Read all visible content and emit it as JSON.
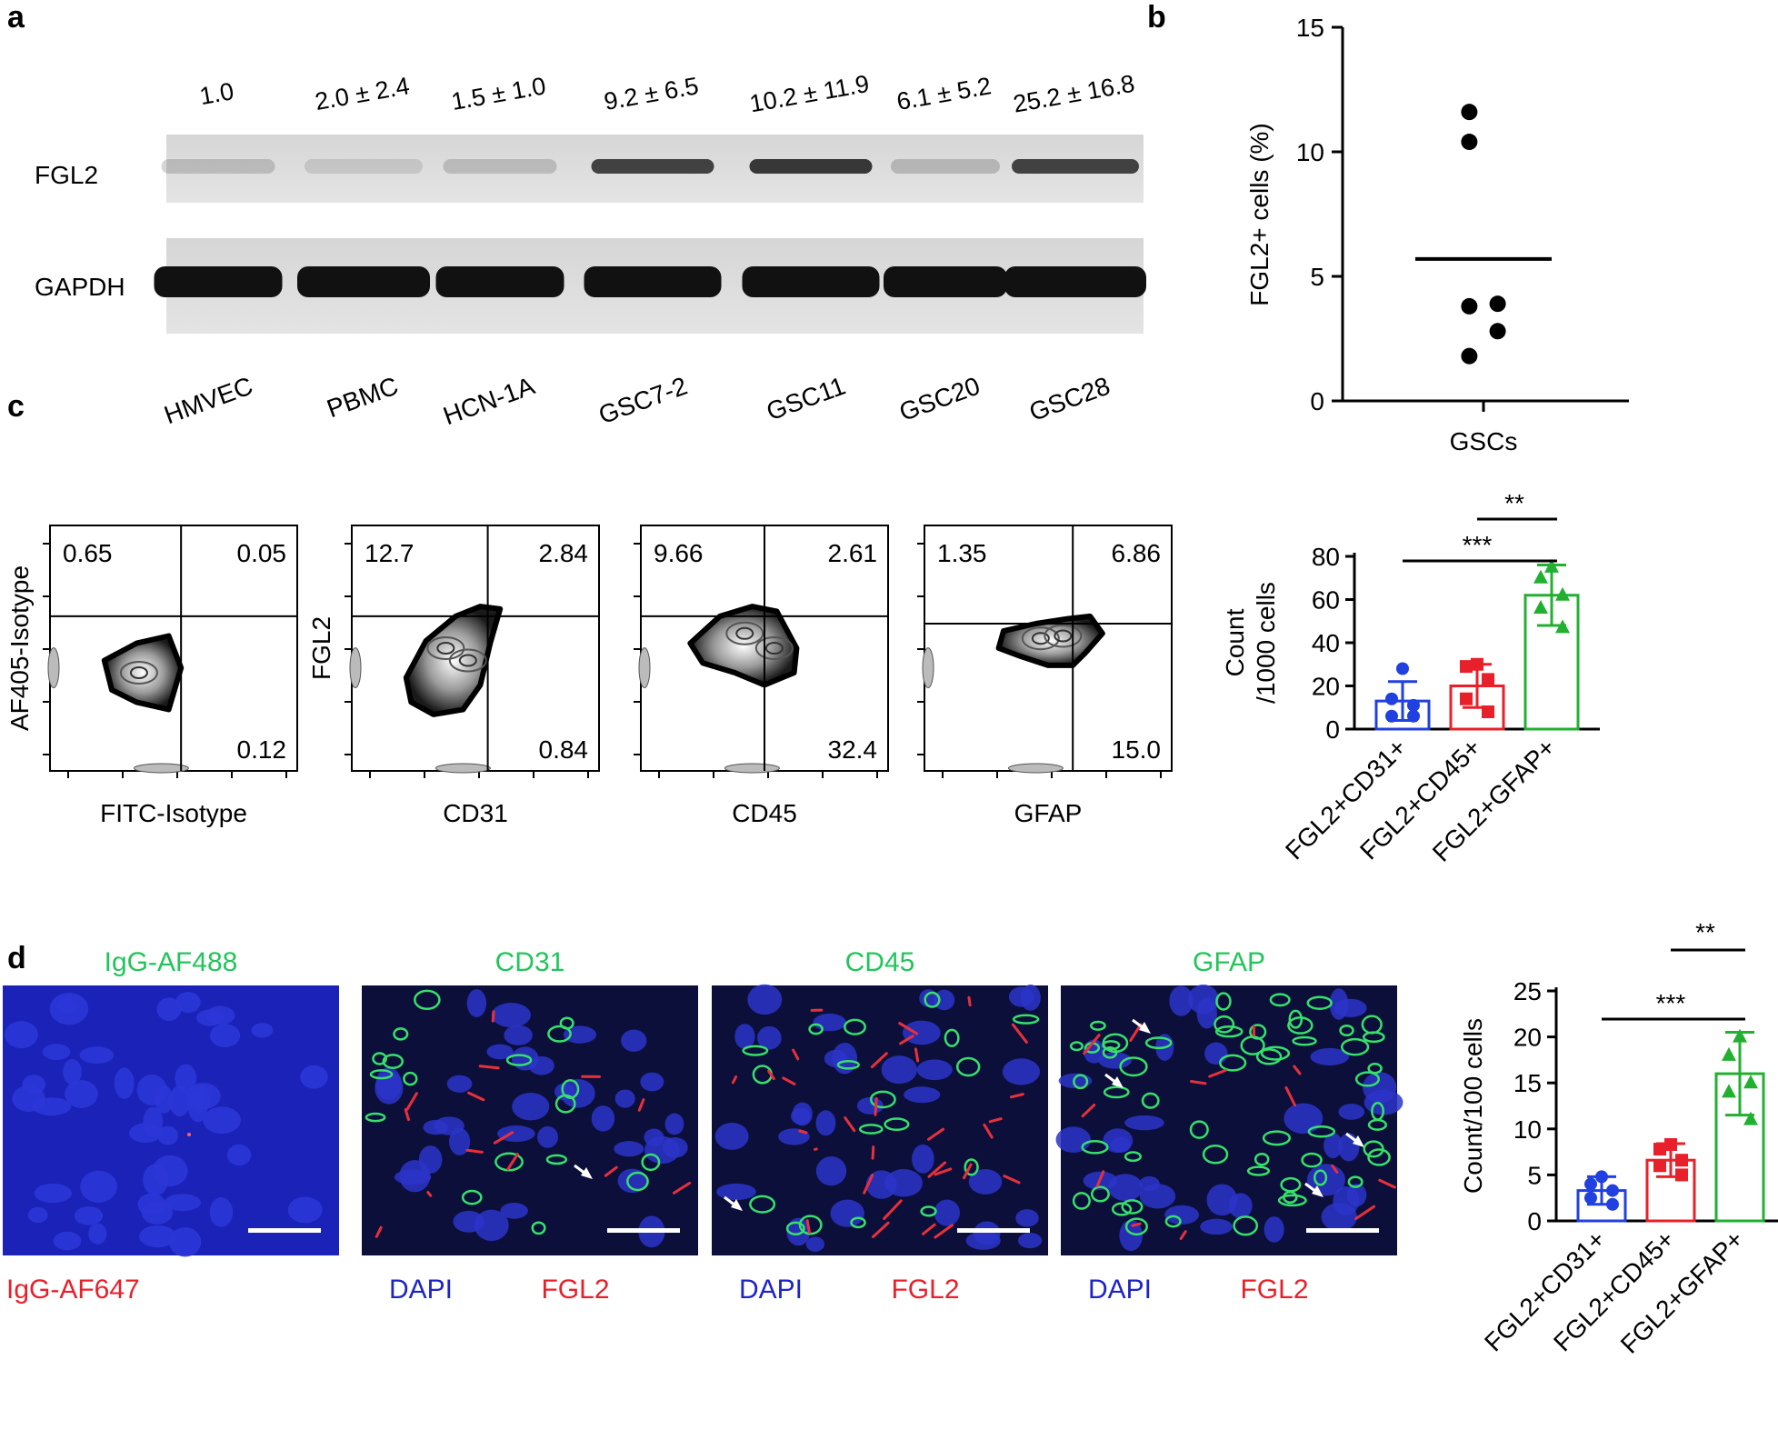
{
  "panel_labels": {
    "a": "a",
    "b": "b",
    "c": "c",
    "d": "d"
  },
  "panel_a": {
    "bands": [
      "FGL2",
      "GAPDH"
    ],
    "lanes": [
      {
        "name": "HMVEC",
        "quant": "1.0",
        "fgl2_intensity": 0.18
      },
      {
        "name": "PBMC",
        "quant": "2.0 ± 2.4",
        "fgl2_intensity": 0.12
      },
      {
        "name": "HCN-1A",
        "quant": "1.5 ± 1.0",
        "fgl2_intensity": 0.18
      },
      {
        "name": "GSC7-2",
        "quant": "9.2 ± 6.5",
        "fgl2_intensity": 0.8
      },
      {
        "name": "GSC11",
        "quant": "10.2 ± 11.9",
        "fgl2_intensity": 0.85
      },
      {
        "name": "GSC20",
        "quant": "6.1 ± 5.2",
        "fgl2_intensity": 0.2
      },
      {
        "name": "GSC28",
        "quant": "25.2 ± 16.8",
        "fgl2_intensity": 0.8
      }
    ]
  },
  "panel_c_flow": {
    "plots": [
      {
        "x_label": "FITC-Isotype",
        "y_label": "AF405-Isotype",
        "q": [
          "0.65",
          "0.05",
          "0.12"
        ]
      },
      {
        "x_label": "CD31",
        "y_label": "FGL2",
        "q": [
          "12.7",
          "2.84",
          "0.84"
        ]
      },
      {
        "x_label": "CD45",
        "y_label": "",
        "q": [
          "9.66",
          "2.61",
          "32.4"
        ]
      },
      {
        "x_label": "GFAP",
        "y_label": "",
        "q": [
          "1.35",
          "6.86",
          "15.0"
        ]
      }
    ]
  },
  "panel_d_images": {
    "panels": [
      {
        "top": "IgG-AF488",
        "bottom_left": "IgG-AF647",
        "bottom_right": ""
      },
      {
        "top": "CD31",
        "bottom_left": "DAPI",
        "bottom_right": "FGL2"
      },
      {
        "top": "CD45",
        "bottom_left": "DAPI",
        "bottom_right": "FGL2"
      },
      {
        "top": "GFAP",
        "bottom_left": "DAPI",
        "bottom_right": "FGL2"
      }
    ],
    "colors": {
      "green": "#22c55a",
      "red": "#e8202a",
      "blue": "#1d24c8"
    }
  },
  "chart_data": [
    {
      "id": "b",
      "type": "scatter",
      "categories": [
        "GSCs"
      ],
      "ylabel": "FGL2+ cells (%)",
      "ylim": [
        0,
        15
      ],
      "yticks": [
        0,
        5,
        10,
        15
      ],
      "points": [
        11.6,
        10.4,
        3.9,
        3.8,
        2.8,
        1.8
      ],
      "mean": 5.7
    },
    {
      "id": "c",
      "type": "bar",
      "categories": [
        "FGL2+CD31+",
        "FGL2+CD45+",
        "FGL2+GFAP+"
      ],
      "values": [
        13,
        20,
        62
      ],
      "errors": [
        9,
        10,
        14
      ],
      "points": [
        [
          28,
          14,
          11,
          6,
          6
        ],
        [
          30,
          29,
          23,
          14,
          8
        ],
        [
          75,
          70,
          62,
          56,
          47
        ]
      ],
      "colors": [
        "#2040e0",
        "#e8202a",
        "#22b030"
      ],
      "markers": [
        "circle",
        "square",
        "triangle"
      ],
      "ylabel_lines": [
        "Count",
        "/1000 cells"
      ],
      "ylim": [
        0,
        80
      ],
      "yticks": [
        0,
        20,
        40,
        60,
        80
      ],
      "significance": [
        {
          "from": 0,
          "to": 2,
          "label": "***"
        },
        {
          "from": 1,
          "to": 2,
          "label": "**"
        }
      ]
    },
    {
      "id": "d",
      "type": "bar",
      "categories": [
        "FGL2+CD31+",
        "FGL2+CD45+",
        "FGL2+GFAP+"
      ],
      "values": [
        3.3,
        6.6,
        16
      ],
      "errors": [
        1.5,
        1.8,
        4.5
      ],
      "points": [
        [
          4.8,
          4,
          3.3,
          2.5,
          1.8
        ],
        [
          8.3,
          7.8,
          6.6,
          6,
          5
        ],
        [
          20,
          18,
          15,
          14,
          11
        ]
      ],
      "colors": [
        "#2040e0",
        "#e8202a",
        "#22b030"
      ],
      "markers": [
        "circle",
        "square",
        "triangle"
      ],
      "ylabel_lines": [
        "Count/100 cells"
      ],
      "ylim": [
        0,
        25
      ],
      "yticks": [
        0,
        5,
        10,
        15,
        20,
        25
      ],
      "significance": [
        {
          "from": 0,
          "to": 2,
          "label": "***"
        },
        {
          "from": 1,
          "to": 2,
          "label": "**"
        }
      ]
    }
  ]
}
